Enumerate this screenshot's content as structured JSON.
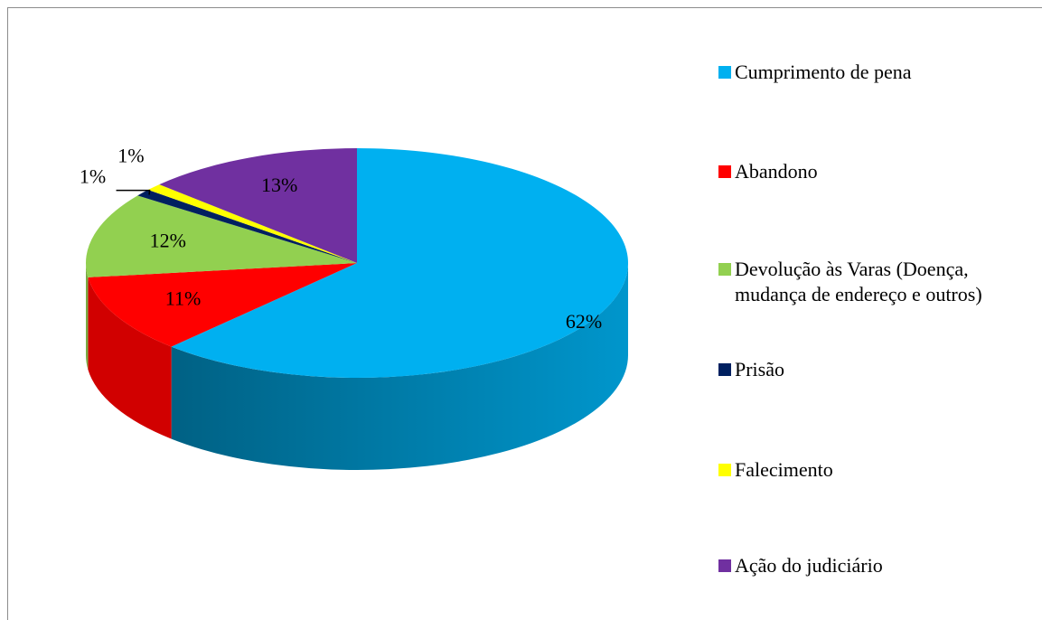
{
  "chart_data": {
    "type": "pie",
    "categories": [
      "Cumprimento de pena",
      "Abandono",
      "Devolução às Varas (Doença, mudança de endereço e outros)",
      "Prisão",
      "Falecimento",
      "Ação do judiciário"
    ],
    "values": [
      62,
      11,
      12,
      1,
      1,
      13
    ],
    "value_labels": [
      "62%",
      "11%",
      "12%",
      "1%",
      "1%",
      "13%"
    ],
    "colors": [
      "#00b0f0",
      "#ff0000",
      "#92d050",
      "#002060",
      "#ffff00",
      "#7030a0"
    ],
    "legend": "right"
  }
}
